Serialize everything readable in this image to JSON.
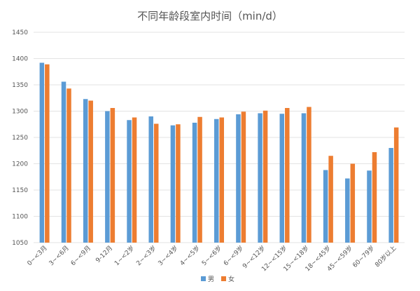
{
  "chart_data": {
    "type": "bar",
    "title": "不同年龄段室内时间（min/d）",
    "xlabel": "",
    "ylabel": "",
    "ylim": [
      1050,
      1450
    ],
    "yticks": [
      1050,
      1100,
      1150,
      1200,
      1250,
      1300,
      1350,
      1400,
      1450
    ],
    "grid": true,
    "legend_position": "bottom",
    "categories": [
      "0~<3月",
      "3~<6月",
      "6~<9月",
      "9-12月",
      "1~<2岁",
      "2~<3岁",
      "3~<4岁",
      "4~<5岁",
      "5~<6岁",
      "6~<9岁",
      "9~<12岁",
      "12~<15岁",
      "15~<18岁",
      "18~<45岁",
      "45~<59岁",
      "60~79岁",
      "80岁以上"
    ],
    "series": [
      {
        "name": "男",
        "color": "#5b9bd5",
        "values": [
          1392,
          1356,
          1323,
          1300,
          1283,
          1290,
          1273,
          1278,
          1285,
          1294,
          1296,
          1295,
          1296,
          1188,
          1172,
          1187,
          1230
        ]
      },
      {
        "name": "女",
        "color": "#ed7d31",
        "values": [
          1389,
          1343,
          1320,
          1306,
          1288,
          1276,
          1275,
          1289,
          1288,
          1299,
          1301,
          1306,
          1308,
          1215,
          1200,
          1222,
          1269
        ]
      }
    ]
  }
}
